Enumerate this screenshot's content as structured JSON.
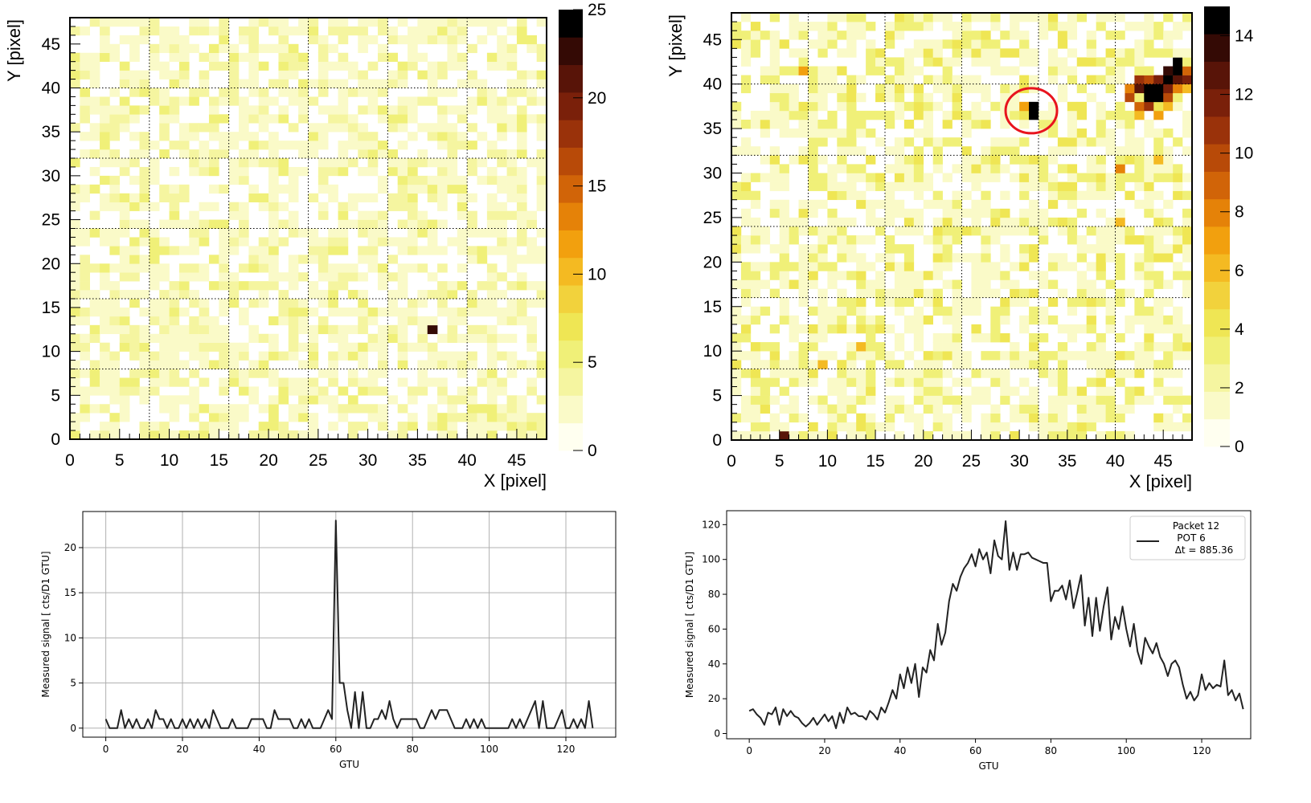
{
  "colors": {
    "scale": [
      "#fffff0",
      "#fafac8",
      "#f5f5a0",
      "#f0f078",
      "#efe654",
      "#f2d23c",
      "#f4ba22",
      "#f2a00e",
      "#e58208",
      "#d16408",
      "#b84a08",
      "#9a320a",
      "#7a200a",
      "#581408",
      "#340a05",
      "#000000"
    ],
    "grid": "#000000",
    "line": "#222222",
    "ring": "#e8141e",
    "mpl_grid": "#b0b0b0"
  },
  "chart_data": [
    {
      "type": "heatmap",
      "title": "",
      "xlabel": "X [pixel]",
      "ylabel": "Y [pixel]",
      "x_range": [
        0,
        48
      ],
      "y_range": [
        0,
        48
      ],
      "x_ticks": [
        "0",
        "5",
        "10",
        "15",
        "20",
        "25",
        "30",
        "35",
        "40",
        "45"
      ],
      "y_ticks": [
        "0",
        "5",
        "10",
        "15",
        "20",
        "25",
        "30",
        "35",
        "40",
        "45"
      ],
      "colorbar": {
        "min": 0,
        "max": 25,
        "ticks": [
          "0",
          "5",
          "10",
          "15",
          "20",
          "25"
        ]
      },
      "background_level": 1.5,
      "ec_boundaries": [
        8,
        16,
        24,
        32,
        40
      ],
      "hot_pixels": [
        {
          "x": 36,
          "y": 12,
          "value": 23
        }
      ]
    },
    {
      "type": "heatmap",
      "title": "",
      "xlabel": "X [pixel]",
      "ylabel": "Y [pixel]",
      "x_range": [
        0,
        48
      ],
      "y_range": [
        0,
        48
      ],
      "x_ticks": [
        "0",
        "5",
        "10",
        "15",
        "20",
        "25",
        "30",
        "35",
        "40",
        "45"
      ],
      "y_ticks": [
        "0",
        "5",
        "10",
        "15",
        "20",
        "25",
        "30",
        "35",
        "40",
        "45"
      ],
      "colorbar": {
        "min": 0,
        "max": 15,
        "ticks": [
          "0",
          "2",
          "4",
          "6",
          "8",
          "10",
          "12",
          "14"
        ]
      },
      "background_level": 2,
      "ec_boundaries": [
        8,
        16,
        24,
        32,
        40
      ],
      "hot_pixels": [
        {
          "x": 31,
          "y": 37,
          "value": 15
        },
        {
          "x": 31,
          "y": 36,
          "value": 15
        },
        {
          "x": 30,
          "y": 37,
          "value": 7
        },
        {
          "x": 30,
          "y": 36,
          "value": 4
        },
        {
          "x": 5,
          "y": 0,
          "value": 13
        },
        {
          "x": 43,
          "y": 39,
          "value": 15
        },
        {
          "x": 44,
          "y": 39,
          "value": 15
        },
        {
          "x": 45,
          "y": 40,
          "value": 15
        },
        {
          "x": 46,
          "y": 41,
          "value": 15
        },
        {
          "x": 46,
          "y": 42,
          "value": 15
        },
        {
          "x": 44,
          "y": 38,
          "value": 15
        },
        {
          "x": 43,
          "y": 38,
          "value": 15
        },
        {
          "x": 42,
          "y": 39,
          "value": 13
        },
        {
          "x": 45,
          "y": 41,
          "value": 14
        },
        {
          "x": 47,
          "y": 40,
          "value": 12
        },
        {
          "x": 42,
          "y": 40,
          "value": 11
        },
        {
          "x": 41,
          "y": 38,
          "value": 10
        },
        {
          "x": 43,
          "y": 37,
          "value": 11
        },
        {
          "x": 45,
          "y": 38,
          "value": 10
        },
        {
          "x": 46,
          "y": 40,
          "value": 13
        },
        {
          "x": 42,
          "y": 37,
          "value": 9
        },
        {
          "x": 44,
          "y": 40,
          "value": 12
        },
        {
          "x": 43,
          "y": 40,
          "value": 10
        },
        {
          "x": 41,
          "y": 39,
          "value": 8
        },
        {
          "x": 47,
          "y": 41,
          "value": 9
        },
        {
          "x": 45,
          "y": 39,
          "value": 12
        },
        {
          "x": 44,
          "y": 36,
          "value": 7
        },
        {
          "x": 42,
          "y": 36,
          "value": 6
        },
        {
          "x": 46,
          "y": 39,
          "value": 8
        },
        {
          "x": 47,
          "y": 39,
          "value": 6
        },
        {
          "x": 45,
          "y": 37,
          "value": 6
        },
        {
          "x": 40,
          "y": 30,
          "value": 8
        },
        {
          "x": 40,
          "y": 24,
          "value": 6
        },
        {
          "x": 7,
          "y": 41,
          "value": 7
        },
        {
          "x": 13,
          "y": 10,
          "value": 6
        },
        {
          "x": 9,
          "y": 8,
          "value": 6
        },
        {
          "x": 44,
          "y": 31,
          "value": 6
        }
      ],
      "annotation": {
        "shape": "circle",
        "x": 31,
        "y": 36.5
      }
    },
    {
      "type": "line",
      "title": "",
      "xlabel": "GTU",
      "ylabel": "Measured signal [ cts/D1 GTU]",
      "xlim": [
        -6,
        133
      ],
      "ylim": [
        -1,
        24
      ],
      "x_ticks": [
        0,
        20,
        40,
        60,
        80,
        100,
        120
      ],
      "y_ticks": [
        0,
        5,
        10,
        15,
        20
      ],
      "grid": true,
      "series": [
        {
          "values": [
            1,
            0,
            0,
            0,
            2,
            0,
            1,
            0,
            1,
            0,
            0,
            1,
            0,
            2,
            1,
            1,
            0,
            1,
            0,
            0,
            1,
            0,
            1,
            0,
            1,
            0,
            1,
            0,
            2,
            1,
            0,
            0,
            0,
            1,
            0,
            0,
            0,
            0,
            1,
            1,
            1,
            1,
            0,
            0,
            2,
            1,
            1,
            1,
            1,
            0,
            0,
            1,
            0,
            1,
            0,
            0,
            0,
            1,
            2,
            1,
            23,
            5,
            5,
            2,
            0,
            4,
            0,
            4,
            0,
            0,
            1,
            1,
            2,
            1,
            3,
            1,
            0,
            1,
            1,
            1,
            1,
            1,
            0,
            0,
            1,
            2,
            1,
            2,
            2,
            2,
            1,
            0,
            0,
            0,
            1,
            0,
            1,
            0,
            1,
            0,
            0,
            0,
            0,
            0,
            0,
            0,
            1,
            0,
            1,
            0,
            1,
            2,
            3,
            0,
            3,
            0,
            0,
            0,
            1,
            2,
            0,
            0,
            1,
            0,
            1,
            0,
            3,
            0
          ]
        }
      ]
    },
    {
      "type": "line",
      "title": "",
      "xlabel": "GTU",
      "ylabel": "Measured signal [ cts/D1 GTU]",
      "xlim": [
        -6,
        133
      ],
      "ylim": [
        -3,
        128
      ],
      "x_ticks": [
        0,
        20,
        40,
        60,
        80,
        100,
        120
      ],
      "y_ticks": [
        0,
        20,
        40,
        60,
        80,
        100,
        120
      ],
      "grid": false,
      "legend": {
        "location": "top-right",
        "title": "Packet 12",
        "entries": [
          "POT 6",
          "Δt = 885.36"
        ]
      },
      "series": [
        {
          "values": [
            13,
            14,
            11,
            9,
            5,
            12,
            11,
            15,
            5,
            14,
            10,
            13,
            10,
            9,
            6,
            4,
            6,
            9,
            5,
            8,
            11,
            7,
            10,
            3,
            12,
            6,
            15,
            11,
            12,
            10,
            10,
            8,
            13,
            11,
            8,
            15,
            12,
            18,
            25,
            20,
            34,
            26,
            38,
            29,
            40,
            21,
            38,
            35,
            48,
            42,
            63,
            51,
            58,
            76,
            86,
            82,
            90,
            95,
            98,
            103,
            96,
            106,
            100,
            104,
            92,
            111,
            102,
            100,
            122,
            94,
            104,
            94,
            103,
            103,
            104,
            101,
            100,
            99,
            98,
            98,
            76,
            82,
            82,
            85,
            77,
            88,
            72,
            81,
            91,
            62,
            78,
            56,
            78,
            59,
            73,
            84,
            54,
            67,
            60,
            73,
            60,
            50,
            63,
            47,
            40,
            55,
            50,
            46,
            52,
            44,
            40,
            33,
            40,
            42,
            38,
            28,
            20,
            24,
            19,
            22,
            34,
            25,
            29,
            26,
            28,
            27,
            42,
            22,
            25,
            19,
            23,
            14
          ]
        }
      ]
    }
  ]
}
